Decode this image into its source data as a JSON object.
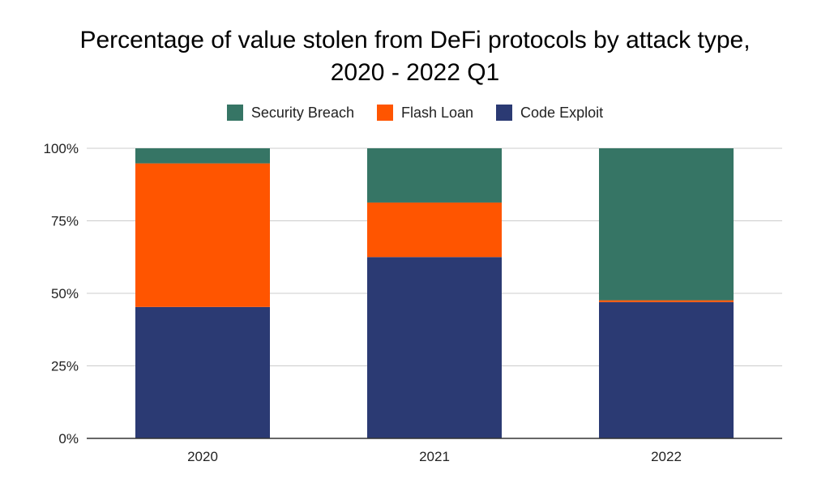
{
  "chart_data": {
    "type": "bar",
    "stacked": true,
    "title_lines": [
      "Percentage of value stolen from DeFi protocols by attack type,",
      "2020 - 2022 Q1"
    ],
    "categories": [
      "2020",
      "2021",
      "2022"
    ],
    "series": [
      {
        "name": "Code Exploit",
        "color": "#2b3a73",
        "values": [
          45.3,
          62.5,
          47.0
        ]
      },
      {
        "name": "Flash Loan",
        "color": "#ff5500",
        "values": [
          49.5,
          18.8,
          0.6
        ]
      },
      {
        "name": "Security Breach",
        "color": "#367565",
        "values": [
          5.2,
          18.7,
          52.4
        ]
      }
    ],
    "legend_order": [
      "Security Breach",
      "Flash Loan",
      "Code Exploit"
    ],
    "legend_position": "top",
    "y_ticks": [
      {
        "value": 0,
        "label": "0%"
      },
      {
        "value": 25,
        "label": "25%"
      },
      {
        "value": 50,
        "label": "50%"
      },
      {
        "value": 75,
        "label": "75%"
      },
      {
        "value": 100,
        "label": "100%"
      }
    ],
    "ylim": [
      0,
      100
    ],
    "grid": true
  }
}
